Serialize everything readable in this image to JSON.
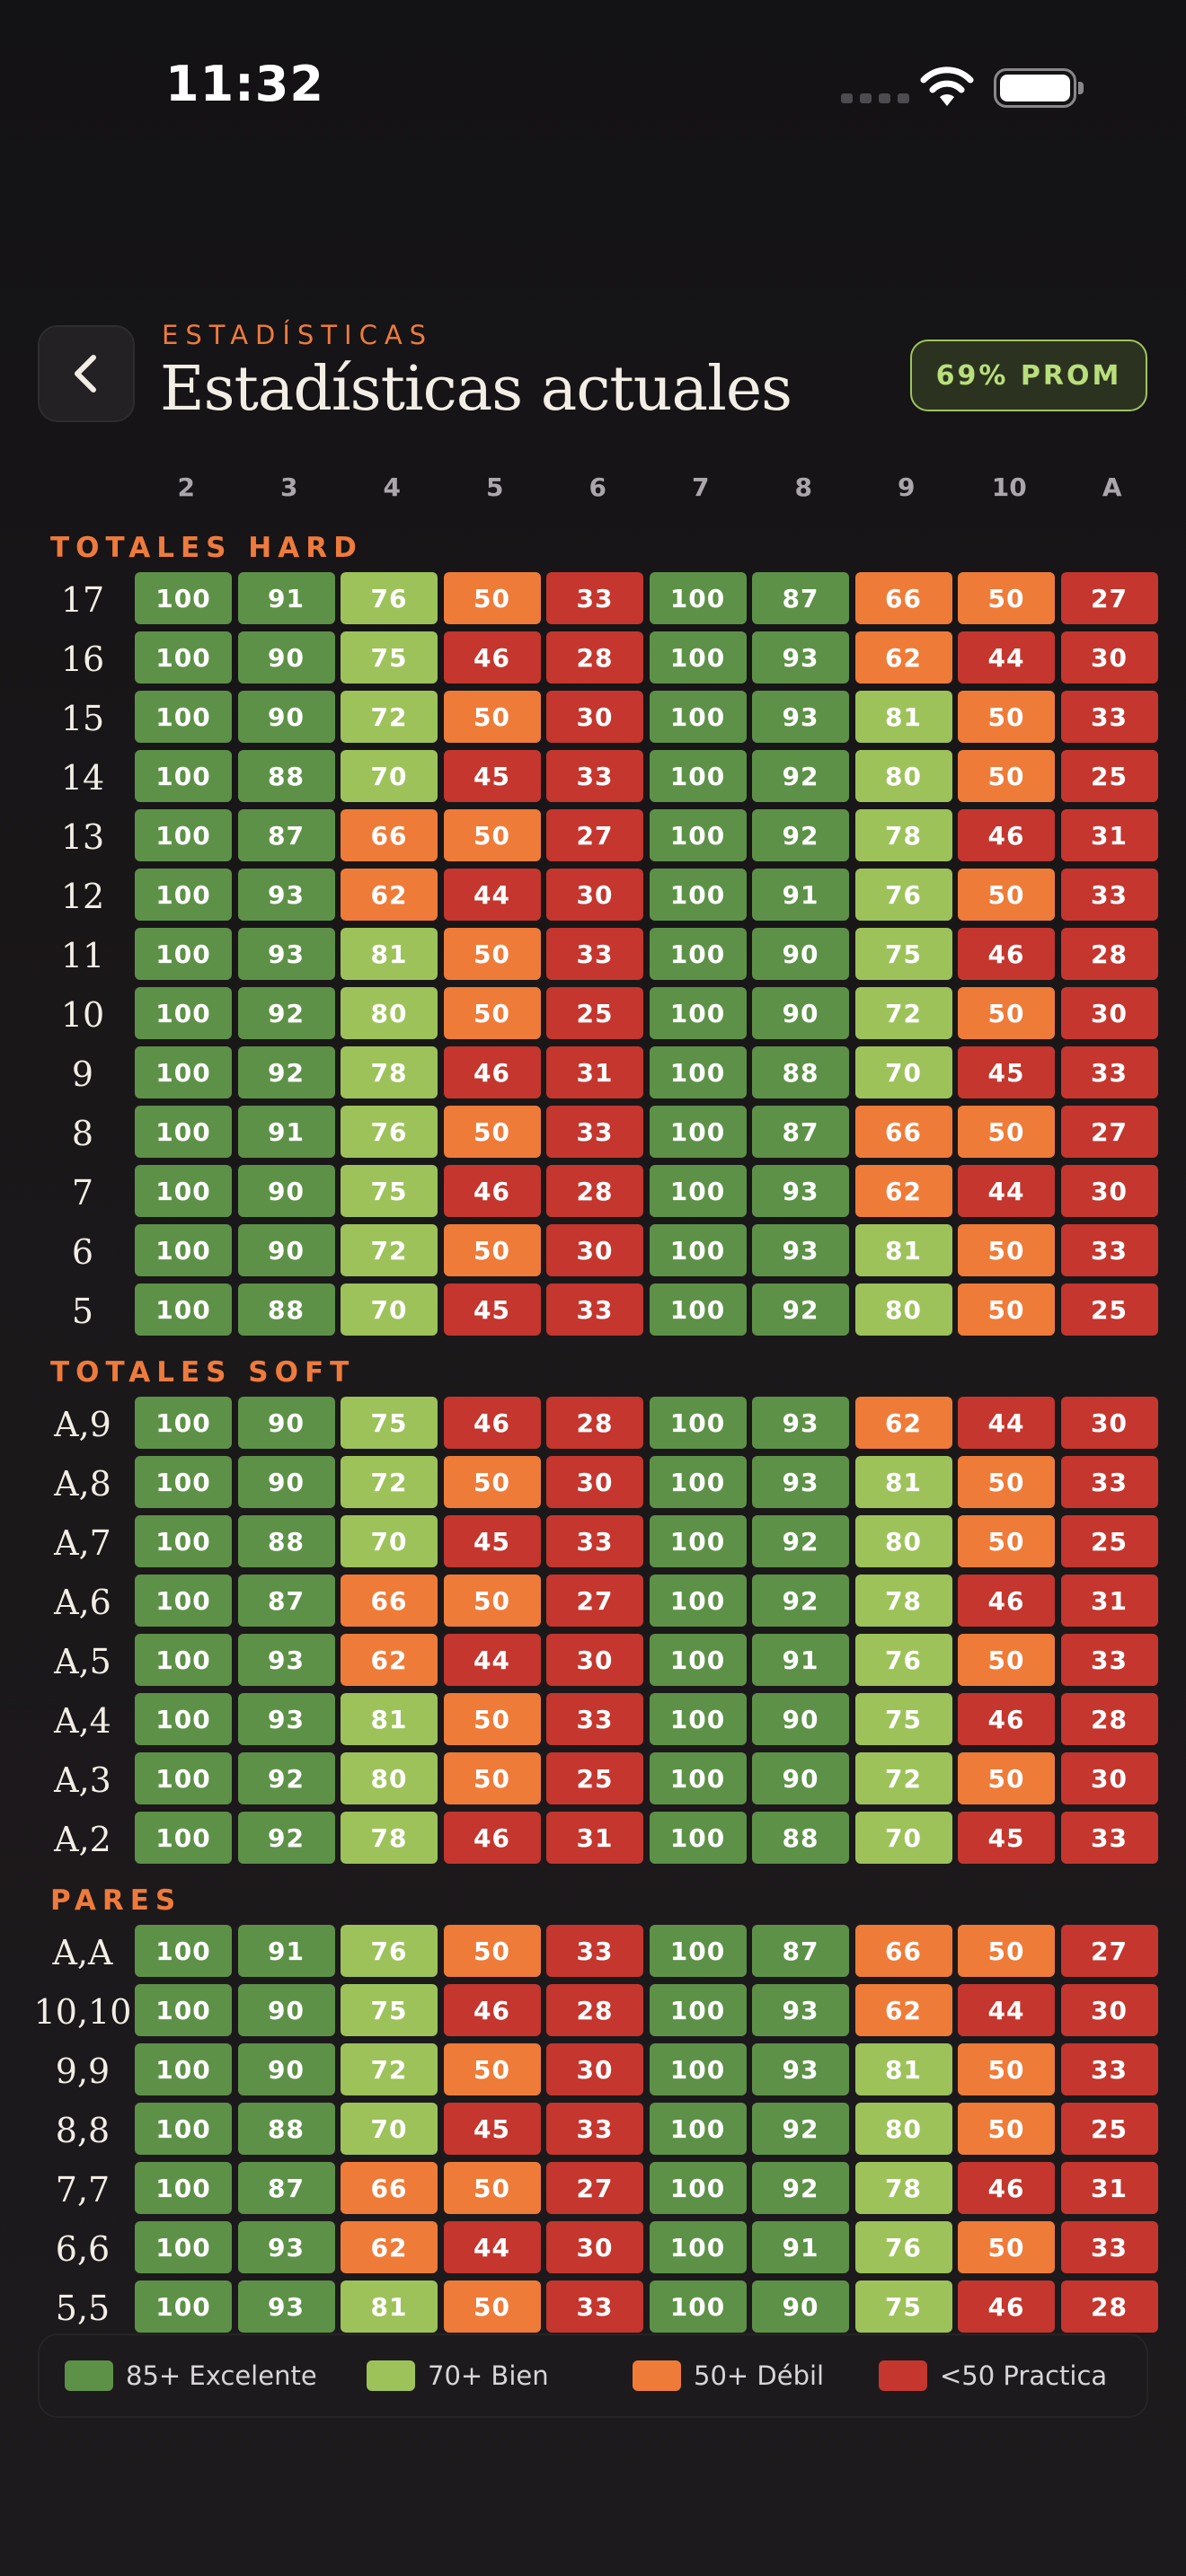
{
  "status_bar": {
    "time": "11:32"
  },
  "header": {
    "eyebrow": "ESTADÍSTICAS",
    "title": "Estadísticas actuales",
    "avg_badge": "69% PROM"
  },
  "columns": [
    "2",
    "3",
    "4",
    "5",
    "6",
    "7",
    "8",
    "9",
    "10",
    "A"
  ],
  "colors": {
    "excellent": "#5d9147",
    "good": "#9dc25a",
    "weak": "#ef7b38",
    "practice": "#c4362e",
    "accent": "#ee7b3d"
  },
  "sections": [
    {
      "title": "TOTALES HARD",
      "rows": [
        {
          "label": "17",
          "values": [
            100,
            91,
            76,
            50,
            33,
            100,
            87,
            66,
            50,
            27
          ]
        },
        {
          "label": "16",
          "values": [
            100,
            90,
            75,
            46,
            28,
            100,
            93,
            62,
            44,
            30
          ]
        },
        {
          "label": "15",
          "values": [
            100,
            90,
            72,
            50,
            30,
            100,
            93,
            81,
            50,
            33
          ]
        },
        {
          "label": "14",
          "values": [
            100,
            88,
            70,
            45,
            33,
            100,
            92,
            80,
            50,
            25
          ]
        },
        {
          "label": "13",
          "values": [
            100,
            87,
            66,
            50,
            27,
            100,
            92,
            78,
            46,
            31
          ]
        },
        {
          "label": "12",
          "values": [
            100,
            93,
            62,
            44,
            30,
            100,
            91,
            76,
            50,
            33
          ]
        },
        {
          "label": "11",
          "values": [
            100,
            93,
            81,
            50,
            33,
            100,
            90,
            75,
            46,
            28
          ]
        },
        {
          "label": "10",
          "values": [
            100,
            92,
            80,
            50,
            25,
            100,
            90,
            72,
            50,
            30
          ]
        },
        {
          "label": "9",
          "values": [
            100,
            92,
            78,
            46,
            31,
            100,
            88,
            70,
            45,
            33
          ]
        },
        {
          "label": "8",
          "values": [
            100,
            91,
            76,
            50,
            33,
            100,
            87,
            66,
            50,
            27
          ]
        },
        {
          "label": "7",
          "values": [
            100,
            90,
            75,
            46,
            28,
            100,
            93,
            62,
            44,
            30
          ]
        },
        {
          "label": "6",
          "values": [
            100,
            90,
            72,
            50,
            30,
            100,
            93,
            81,
            50,
            33
          ]
        },
        {
          "label": "5",
          "values": [
            100,
            88,
            70,
            45,
            33,
            100,
            92,
            80,
            50,
            25
          ]
        }
      ]
    },
    {
      "title": "TOTALES SOFT",
      "rows": [
        {
          "label": "A,9",
          "values": [
            100,
            90,
            75,
            46,
            28,
            100,
            93,
            62,
            44,
            30
          ]
        },
        {
          "label": "A,8",
          "values": [
            100,
            90,
            72,
            50,
            30,
            100,
            93,
            81,
            50,
            33
          ]
        },
        {
          "label": "A,7",
          "values": [
            100,
            88,
            70,
            45,
            33,
            100,
            92,
            80,
            50,
            25
          ]
        },
        {
          "label": "A,6",
          "values": [
            100,
            87,
            66,
            50,
            27,
            100,
            92,
            78,
            46,
            31
          ]
        },
        {
          "label": "A,5",
          "values": [
            100,
            93,
            62,
            44,
            30,
            100,
            91,
            76,
            50,
            33
          ]
        },
        {
          "label": "A,4",
          "values": [
            100,
            93,
            81,
            50,
            33,
            100,
            90,
            75,
            46,
            28
          ]
        },
        {
          "label": "A,3",
          "values": [
            100,
            92,
            80,
            50,
            25,
            100,
            90,
            72,
            50,
            30
          ]
        },
        {
          "label": "A,2",
          "values": [
            100,
            92,
            78,
            46,
            31,
            100,
            88,
            70,
            45,
            33
          ]
        }
      ]
    },
    {
      "title": "PARES",
      "rows": [
        {
          "label": "A,A",
          "values": [
            100,
            91,
            76,
            50,
            33,
            100,
            87,
            66,
            50,
            27
          ]
        },
        {
          "label": "10,10",
          "values": [
            100,
            90,
            75,
            46,
            28,
            100,
            93,
            62,
            44,
            30
          ]
        },
        {
          "label": "9,9",
          "values": [
            100,
            90,
            72,
            50,
            30,
            100,
            93,
            81,
            50,
            33
          ]
        },
        {
          "label": "8,8",
          "values": [
            100,
            88,
            70,
            45,
            33,
            100,
            92,
            80,
            50,
            25
          ]
        },
        {
          "label": "7,7",
          "values": [
            100,
            87,
            66,
            50,
            27,
            100,
            92,
            78,
            46,
            31
          ]
        },
        {
          "label": "6,6",
          "values": [
            100,
            93,
            62,
            44,
            30,
            100,
            91,
            76,
            50,
            33
          ]
        },
        {
          "label": "5,5",
          "values": [
            100,
            93,
            81,
            50,
            33,
            100,
            90,
            75,
            46,
            28
          ]
        }
      ]
    }
  ],
  "legend": [
    {
      "label": "85+ Excelente",
      "color": "#5d9147"
    },
    {
      "label": "70+ Bien",
      "color": "#9dc25a"
    },
    {
      "label": "50+ Débil",
      "color": "#ef7b38"
    },
    {
      "label": "<50 Practica",
      "color": "#c4362e"
    }
  ]
}
